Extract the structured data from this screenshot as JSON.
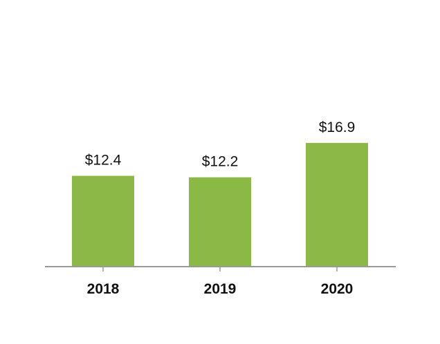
{
  "chart_data": {
    "type": "bar",
    "categories": [
      "2018",
      "2019",
      "2020"
    ],
    "values": [
      12.4,
      12.2,
      16.9
    ],
    "value_labels": [
      "$12.4",
      "$12.2",
      "$16.9"
    ],
    "title": "",
    "xlabel": "",
    "ylabel": "",
    "ylim": [
      0,
      30
    ],
    "grid": false,
    "legend": "none",
    "colors": {
      "bar": "#8aba45",
      "axis": "#999999",
      "text": "#111111"
    }
  }
}
